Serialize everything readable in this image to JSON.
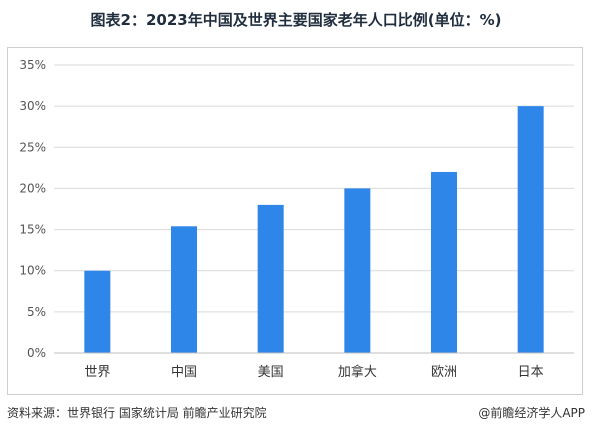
{
  "title": "图表2：2023年中国及世界主要国家老年人口比例(单位：%)",
  "source": "资料来源：世界银行 国家统计局 前瞻产业研究院",
  "brand": "@前瞻经济学人APP",
  "colors": {
    "bar": "#2e86e8",
    "grid": "#d9d9d9",
    "axis": "#bfbfbf",
    "text": "#555555"
  },
  "chart_data": {
    "type": "bar",
    "title": "图表2：2023年中国及世界主要国家老年人口比例(单位：%)",
    "xlabel": "",
    "ylabel": "",
    "categories": [
      "世界",
      "中国",
      "美国",
      "加拿大",
      "欧洲",
      "日本"
    ],
    "values": [
      10,
      15.4,
      18,
      20,
      22,
      30
    ],
    "ylim": [
      0,
      35
    ],
    "yticks": [
      0,
      5,
      10,
      15,
      20,
      25,
      30,
      35
    ],
    "ytick_labels": [
      "0%",
      "5%",
      "10%",
      "15%",
      "20%",
      "25%",
      "30%",
      "35%"
    ],
    "grid": true,
    "legend": "none"
  }
}
